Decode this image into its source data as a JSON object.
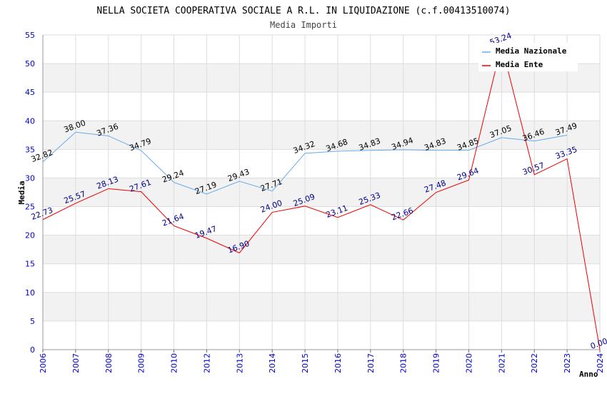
{
  "chart_data": {
    "type": "line",
    "title": "NELLA SOCIETA COOPERATIVA SOCIALE A R.L. IN LIQUIDAZIONE (c.f.00413510074)",
    "subtitle": "Media Importi",
    "xlabel": "Anno",
    "ylabel": "Media",
    "ylim": [
      0,
      55
    ],
    "yticks": [
      0,
      5,
      10,
      15,
      20,
      25,
      30,
      35,
      40,
      45,
      50,
      55
    ],
    "categories": [
      "2006",
      "2007",
      "2008",
      "2009",
      "2010",
      "2012",
      "2013",
      "2014",
      "2015",
      "2016",
      "2017",
      "2018",
      "2019",
      "2020",
      "2021",
      "2022",
      "2023",
      "2024"
    ],
    "series": [
      {
        "name": "Media Nazionale",
        "color": "#66aaee",
        "values": [
          32.82,
          38.0,
          37.36,
          34.79,
          29.24,
          27.19,
          29.43,
          27.71,
          34.32,
          34.68,
          34.83,
          34.94,
          34.83,
          34.85,
          37.05,
          36.46,
          37.49,
          null
        ],
        "labels": [
          "32.82",
          "38.00",
          "37.36",
          "34.79",
          "29.24",
          "27.19",
          "29.43",
          "27.71",
          "34.32",
          "34.68",
          "34.83",
          "34.94",
          "34.83",
          "34.85",
          "37.05",
          "36.46",
          "37.49",
          null
        ]
      },
      {
        "name": "Media Ente",
        "color": "#ee0000",
        "values": [
          22.73,
          25.57,
          28.13,
          27.61,
          21.64,
          19.47,
          16.9,
          24.0,
          25.09,
          23.11,
          25.33,
          22.66,
          27.48,
          29.64,
          53.24,
          30.57,
          33.35,
          0.0
        ],
        "labels": [
          "22.73",
          "25.57",
          "28.13",
          "27.61",
          "21.64",
          "19.47",
          "16.90",
          "24.00",
          "25.09",
          "23.11",
          "25.33",
          "22.66",
          "27.48",
          "29.64",
          "53.24",
          "30.57",
          "33.35",
          "0.00"
        ]
      }
    ],
    "legend_position": "top-right",
    "grid": true
  }
}
